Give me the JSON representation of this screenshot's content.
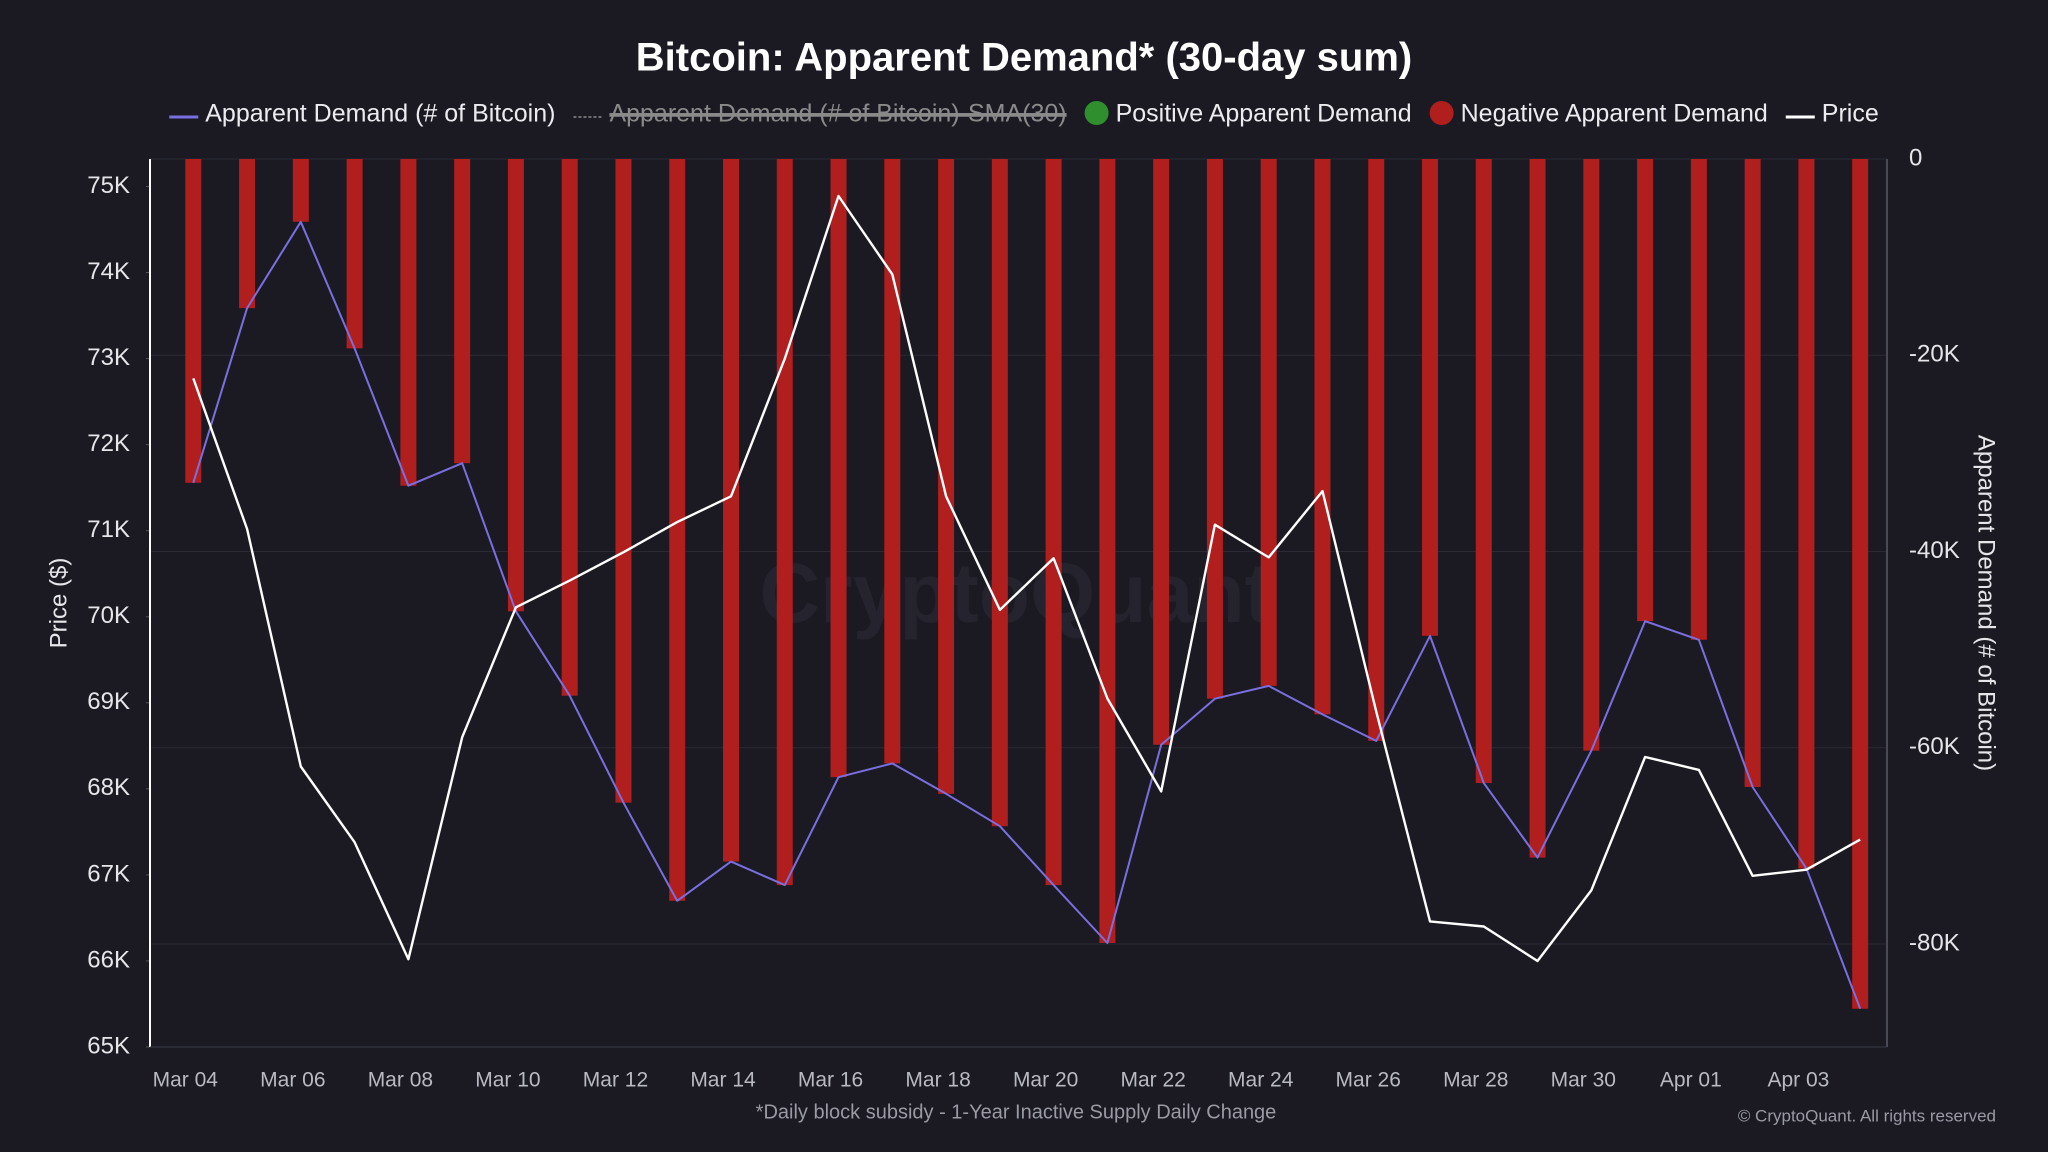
{
  "chart_data": {
    "type": "bar-line",
    "title": "Bitcoin: Apparent Demand* (30-day sum)",
    "footnote": "*Daily block subsidy - 1-Year Inactive Supply Daily Change",
    "credit": "© CryptoQuant. All rights reserved",
    "watermark": "CryptoQuant",
    "y_label": "Price ($)",
    "y2_label": "Apparent Demand (# of Bitcoin)",
    "categories": [
      "Mar 04",
      null,
      "Mar 06",
      null,
      "Mar 08",
      null,
      "Mar 10",
      null,
      "Mar 12",
      null,
      "Mar 14",
      null,
      "Mar 16",
      null,
      "Mar 18",
      null,
      "Mar 20",
      null,
      "Mar 22",
      null,
      "Mar 24",
      null,
      "Mar 26",
      null,
      "Mar 28",
      null,
      "Mar 30",
      null,
      "Apr 01",
      null,
      "Apr 03",
      null
    ],
    "ylim": [
      65000,
      75320
    ],
    "yticks": [
      {
        "value": 65000,
        "label": "65K"
      },
      {
        "value": 66000,
        "label": "66K"
      },
      {
        "value": 67000,
        "label": "67K"
      },
      {
        "value": 68000,
        "label": "68K"
      },
      {
        "value": 69000,
        "label": "69K"
      },
      {
        "value": 70000,
        "label": "70K"
      },
      {
        "value": 71000,
        "label": "71K"
      },
      {
        "value": 72000,
        "label": "72K"
      },
      {
        "value": 73000,
        "label": "73K"
      },
      {
        "value": 74000,
        "label": "74K"
      },
      {
        "value": 75000,
        "label": "75K"
      }
    ],
    "y2lim": [
      -90500,
      0
    ],
    "y2ticks": [
      0,
      {
        "value": -20000,
        "label": "-20K"
      },
      {
        "value": -40000,
        "label": "-40K"
      },
      {
        "value": -60000,
        "label": "-60K"
      },
      {
        "value": -80000,
        "label": "-80K"
      }
    ],
    "grid": true,
    "series": [
      {
        "name": "Apparent Demand (# of Bitcoin)",
        "type": "line",
        "axis": "y2",
        "color": "#7b6fe0",
        "values": [
          -33000,
          -15200,
          -6400,
          -19300,
          -33300,
          -31000,
          -46100,
          -54700,
          -65600,
          -75600,
          -71600,
          -74000,
          -63000,
          -61600,
          -64700,
          -68000,
          -74000,
          -79900,
          -59700,
          -55000,
          -53700,
          -56600,
          -59300,
          -48600,
          -63600,
          -71200,
          -60300,
          -47100,
          -49000,
          -64000,
          -72300,
          -86600
        ]
      },
      {
        "name": "Apparent Demand (# of Bitcoin)-SMA(30)",
        "type": "line",
        "axis": "y2",
        "color": "#8a8a8a",
        "hidden": true
      },
      {
        "name": "Positive Apparent Demand",
        "type": "bar",
        "axis": "y2",
        "color": "#2f8f2f"
      },
      {
        "name": "Negative Apparent Demand",
        "type": "bar",
        "axis": "y2",
        "color": "#b01e1e",
        "values": [
          -33000,
          -15200,
          -6400,
          -19300,
          -33300,
          -31000,
          -46100,
          -54700,
          -65600,
          -75600,
          -71600,
          -74000,
          -63000,
          -61600,
          -64700,
          -68000,
          -74000,
          -79900,
          -59700,
          -55000,
          -53700,
          -56600,
          -59300,
          -48600,
          -63600,
          -71200,
          -60300,
          -47100,
          -49000,
          -64000,
          -72300,
          -86600
        ]
      },
      {
        "name": "Price",
        "type": "line",
        "axis": "y",
        "color": "#ffffff",
        "values": [
          72770,
          71020,
          68260,
          67380,
          66020,
          68600,
          70110,
          70420,
          70750,
          71100,
          71400,
          73000,
          74890,
          73980,
          71400,
          70080,
          70680,
          69050,
          67970,
          71070,
          70690,
          71460,
          68900,
          66460,
          66400,
          66000,
          66820,
          68370,
          68220,
          66990,
          67060,
          67410
        ]
      }
    ]
  }
}
